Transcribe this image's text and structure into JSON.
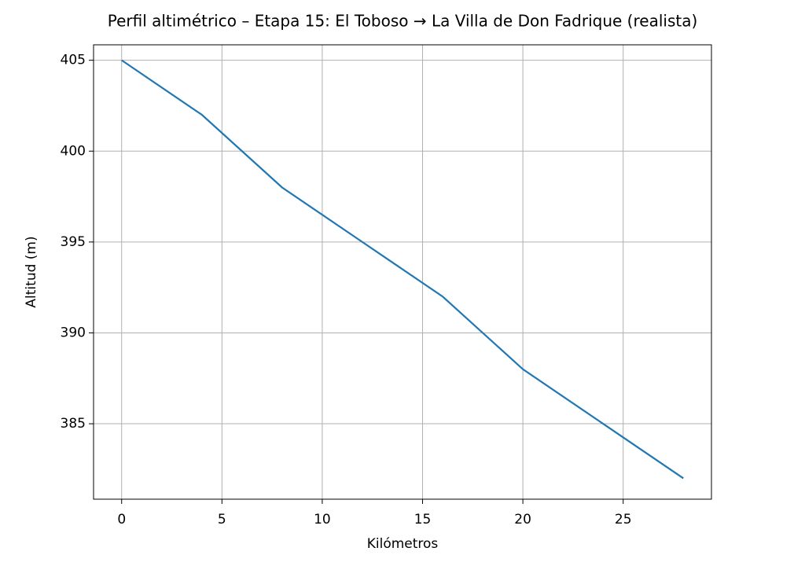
{
  "chart_data": {
    "type": "line",
    "title": "Perfil altimétrico – Etapa 15: El Toboso → La Villa de Don Fadrique (realista)",
    "xlabel": "Kilómetros",
    "ylabel": "Altitud (m)",
    "x": [
      0,
      4,
      8,
      12,
      16,
      20,
      24,
      28
    ],
    "series": [
      {
        "name": "Altitud",
        "color": "#1f77b4",
        "values": [
          405,
          402,
          398,
          395,
          392,
          388,
          385,
          382
        ]
      }
    ],
    "xlim": [
      -1.4,
      29.4
    ],
    "ylim": [
      380.85,
      405.85
    ],
    "xticks": [
      0,
      5,
      10,
      15,
      20,
      25
    ],
    "yticks": [
      385,
      390,
      395,
      400,
      405
    ],
    "grid": true
  }
}
